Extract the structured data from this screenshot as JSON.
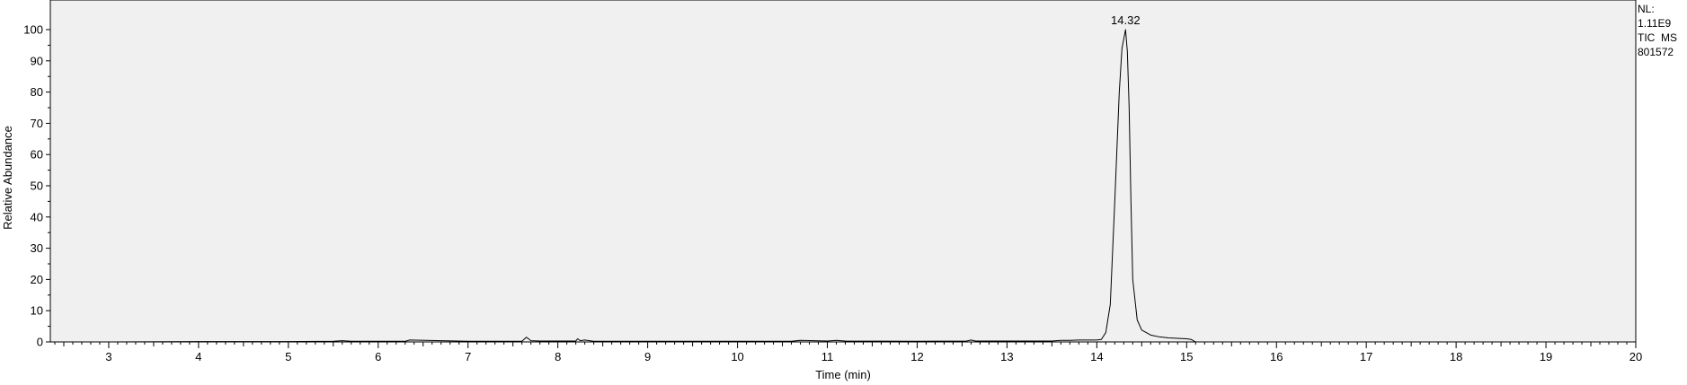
{
  "side_info": {
    "nl_label": "NL:",
    "nl_value": "1.11E9",
    "scan_type": "TIC  MS",
    "file_id": "801572"
  },
  "chart_data": {
    "type": "line",
    "xlabel": "Time (min)",
    "ylabel": "Relative Abundance",
    "xlim": [
      2.35,
      20.0
    ],
    "ylim": [
      0,
      105
    ],
    "x_ticks": [
      3,
      4,
      5,
      6,
      7,
      8,
      9,
      10,
      11,
      12,
      13,
      14,
      15,
      16,
      17,
      18,
      19,
      20
    ],
    "y_ticks": [
      0,
      10,
      20,
      30,
      40,
      50,
      60,
      70,
      80,
      90,
      100
    ],
    "grid": false,
    "legend": "none",
    "colors": {
      "plot_background": "#f0f0f0",
      "line": "#000000",
      "axis": "#000000"
    },
    "series": [
      {
        "x": [
          2.35,
          3.0,
          4.0,
          5.0,
          5.5,
          5.6,
          5.7,
          6.0,
          6.3,
          6.35,
          7.0,
          7.6,
          7.65,
          7.7,
          7.8,
          8.2,
          8.22,
          8.25,
          8.3,
          8.35,
          8.4,
          9.0,
          10.0,
          10.6,
          10.7,
          11.0,
          11.1,
          11.2,
          12.0,
          12.55,
          12.6,
          12.65,
          13.0,
          13.5,
          13.6,
          13.7,
          13.8,
          13.9,
          14.0,
          14.05,
          14.1,
          14.15,
          14.2,
          14.25,
          14.28,
          14.3,
          14.32,
          14.34,
          14.36,
          14.38,
          14.4,
          14.45,
          14.5,
          14.6,
          14.7,
          14.8,
          15.0,
          15.05,
          15.1,
          15.5,
          16.0,
          17.0,
          18.0,
          19.0,
          20.0
        ],
        "y": [
          0.0,
          0.0,
          0.1,
          0.1,
          0.2,
          0.4,
          0.2,
          0.2,
          0.2,
          0.6,
          0.2,
          0.2,
          1.5,
          0.4,
          0.3,
          0.3,
          1.0,
          0.4,
          0.6,
          0.4,
          0.2,
          0.2,
          0.2,
          0.2,
          0.5,
          0.3,
          0.5,
          0.3,
          0.2,
          0.3,
          0.6,
          0.3,
          0.3,
          0.3,
          0.5,
          0.5,
          0.6,
          0.6,
          0.6,
          0.8,
          3.0,
          12.0,
          45.0,
          80.0,
          94.0,
          97.0,
          100.0,
          93.0,
          75.0,
          45.0,
          20.0,
          7.0,
          3.8,
          2.2,
          1.6,
          1.3,
          1.0,
          0.8,
          0.0,
          0.0,
          0.0,
          0.0,
          0.0,
          0.0,
          0.0
        ]
      }
    ],
    "annotations": [
      {
        "x": 14.32,
        "y": 100,
        "text": "14.32"
      }
    ]
  }
}
